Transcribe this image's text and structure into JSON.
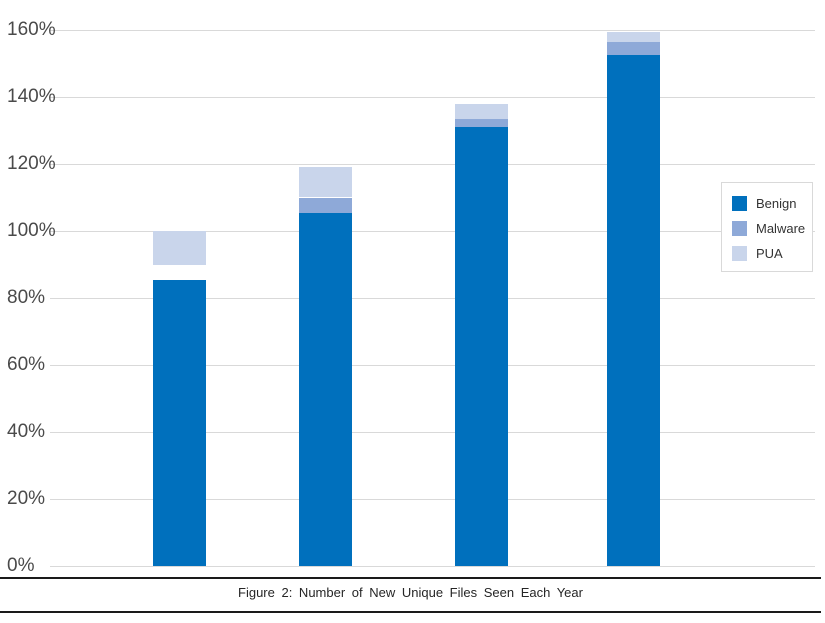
{
  "figure": {
    "caption": "Figure 2: Number of New Unique Files Seen Each Year"
  },
  "legend": {
    "items": [
      {
        "label": "Benign",
        "color": "#0070BD"
      },
      {
        "label": "Malware",
        "color": "#8EA9D8"
      },
      {
        "label": "PUA",
        "color": "#C9D5EB"
      }
    ]
  },
  "chart_data": {
    "type": "bar",
    "stacked": true,
    "title": "",
    "xlabel": "",
    "ylabel": "",
    "categories": [
      "",
      "",
      "",
      ""
    ],
    "series": [
      {
        "name": "Benign",
        "color": "#0070BD",
        "values": [
          85.5,
          105.5,
          131,
          152.5
        ]
      },
      {
        "name": "Malware",
        "color": "#8EA9D8",
        "values": [
          4.5,
          4.5,
          2.5,
          4
        ],
        "segment_colors": [
          "#FFFFFF",
          "#8EA9D8",
          "#8EA9D8",
          "#8EA9D8"
        ]
      },
      {
        "name": "PUA",
        "color": "#C9D5EB",
        "values": [
          10,
          9,
          4.5,
          3
        ]
      }
    ],
    "stack_totals": [
      100,
      119,
      138,
      159.5
    ],
    "ylim": [
      0,
      160
    ],
    "y_tick_step": 20,
    "y_ticks": [
      "160%",
      "140%",
      "120%",
      "100%",
      "80%",
      "60%",
      "40%",
      "20%",
      "0%"
    ],
    "grid": true,
    "x_axis_labels_visible": false,
    "legend_position": "right",
    "colors": {
      "gridline": "#D9D9D9",
      "axis_label": "#4A4A4A",
      "caption_rule": "#1A1A1A",
      "background": "#FFFFFF"
    }
  }
}
